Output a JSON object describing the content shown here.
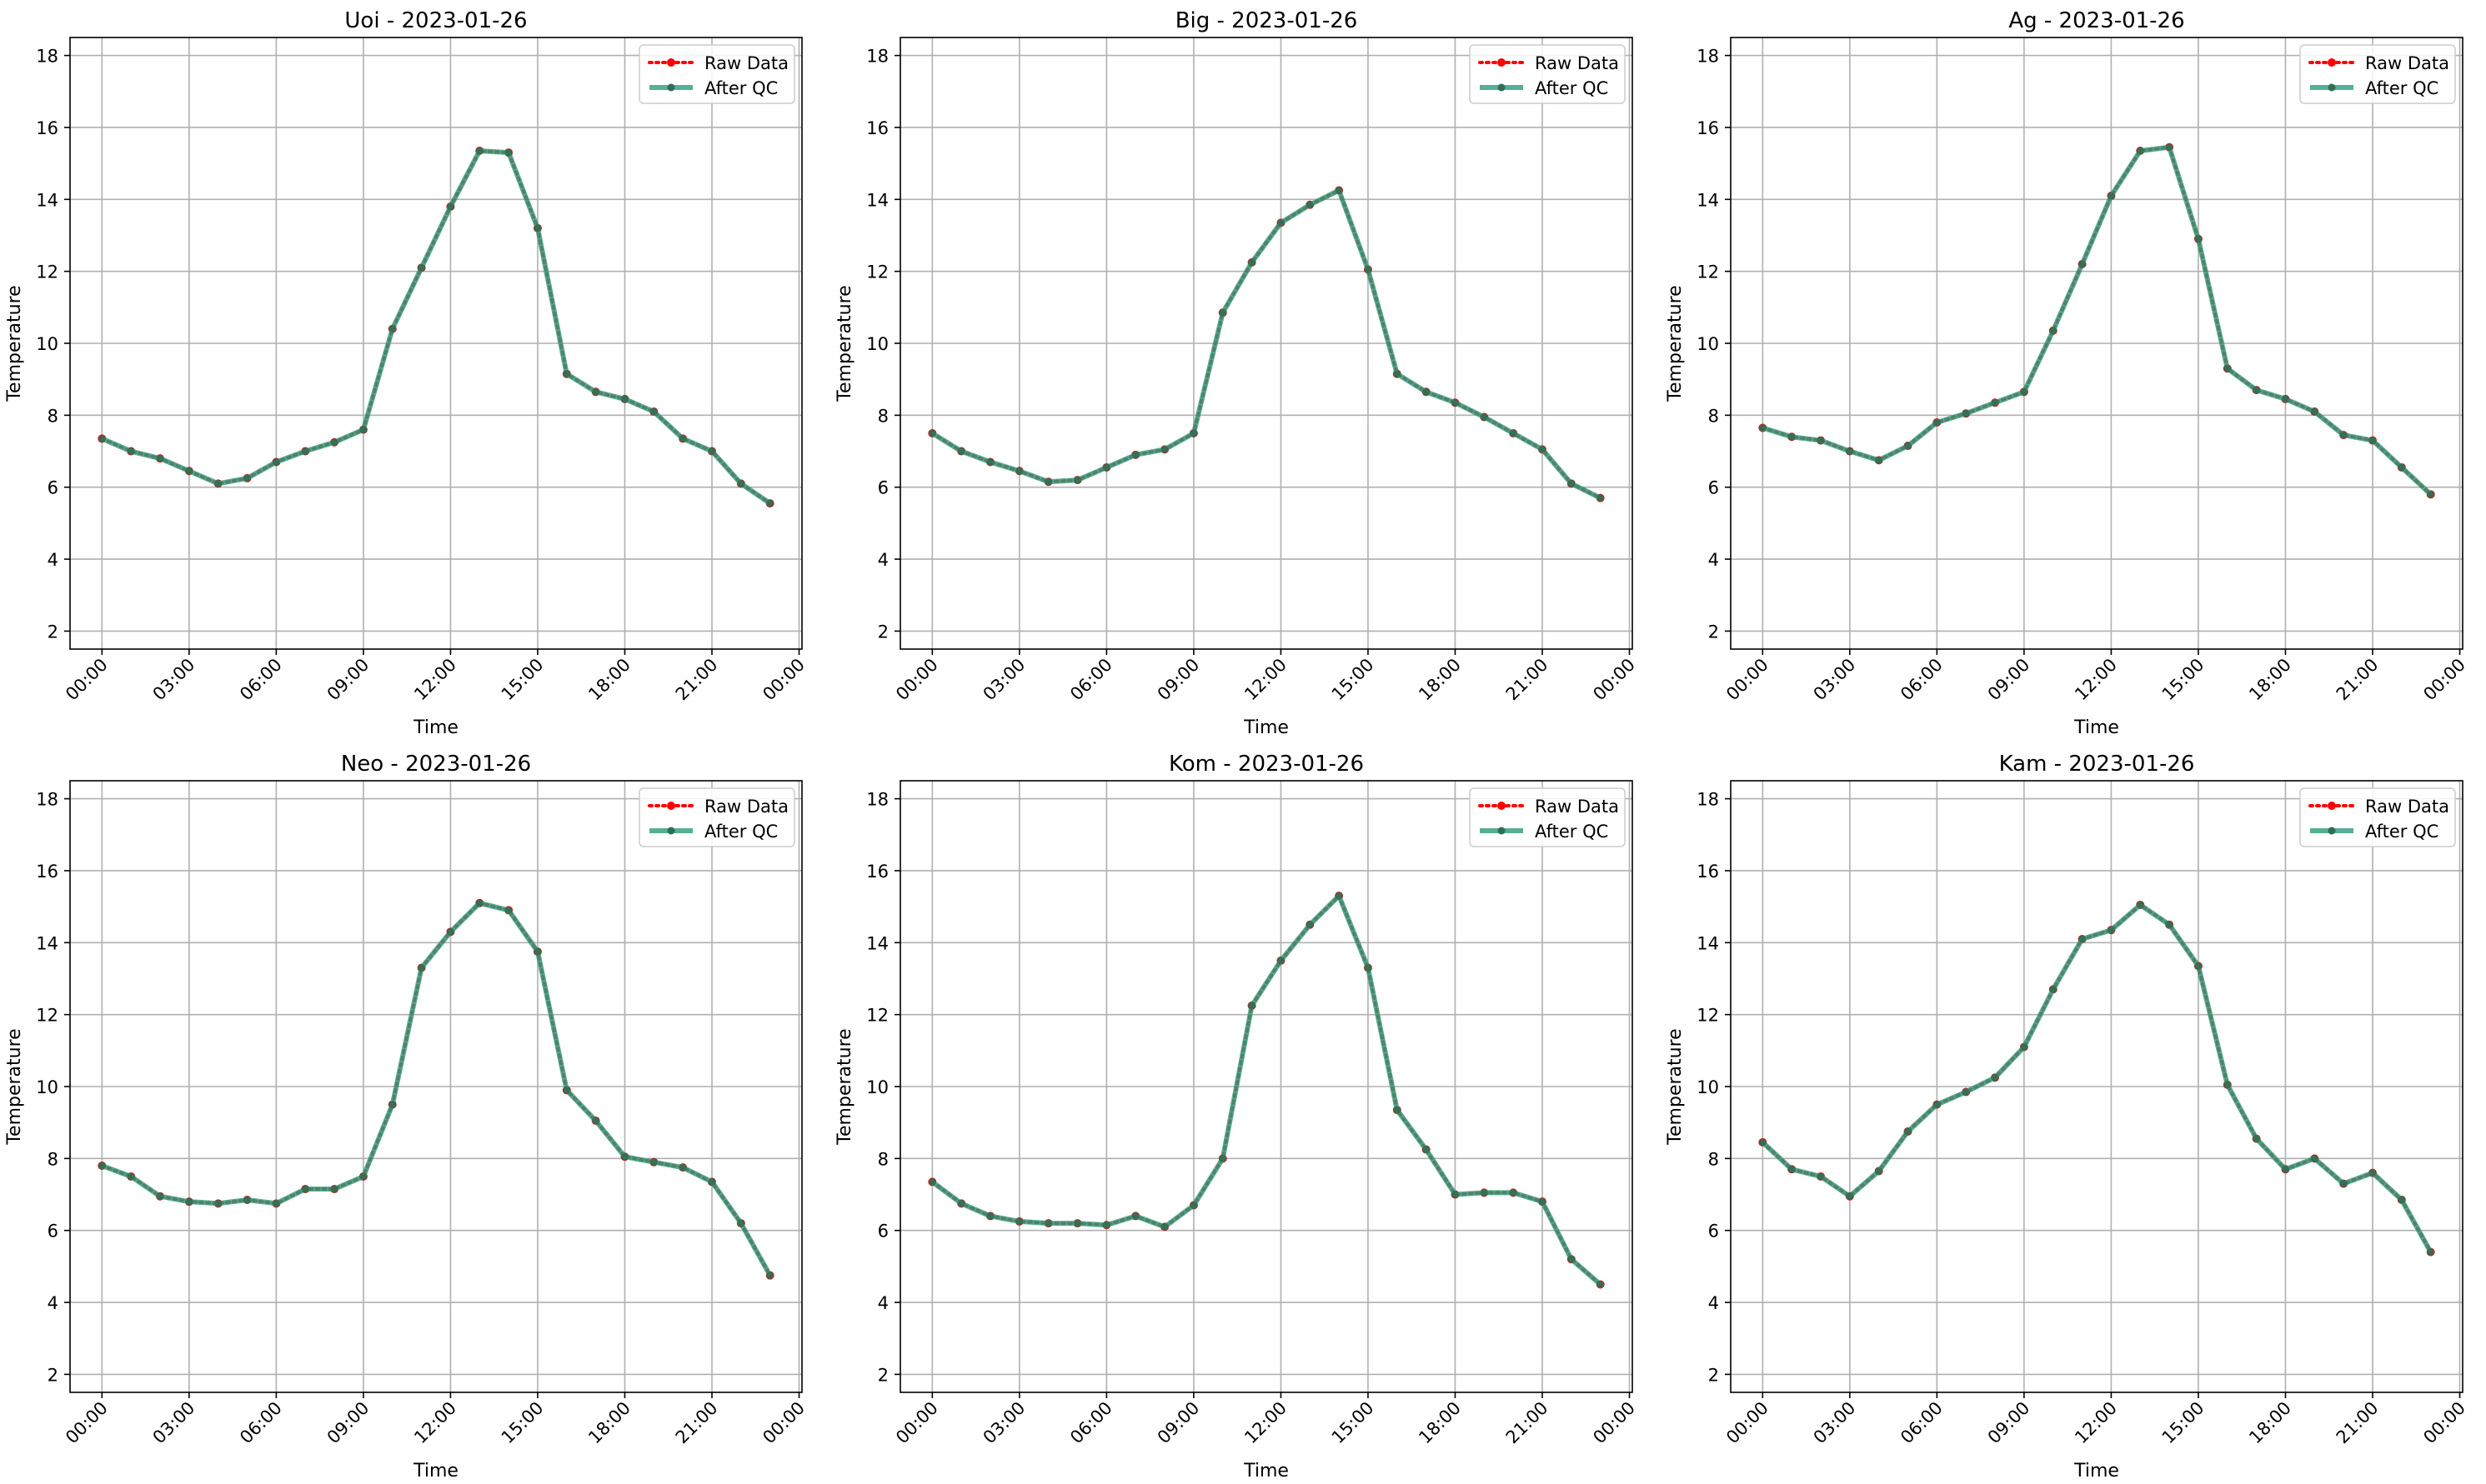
{
  "colors": {
    "raw": "#ff0000",
    "qc": "#2e9e7f",
    "grid": "#b0b0b0",
    "axis": "#000000"
  },
  "chart_data": [
    {
      "type": "line",
      "title": "Uoi - 2023-01-26",
      "xlabel": "Time",
      "ylabel": "Temperature",
      "grid": true,
      "legend_position": "top-right",
      "xlim": [
        -1.1,
        24.1
      ],
      "ylim": [
        1.5,
        18.5
      ],
      "yticks": [
        2,
        4,
        6,
        8,
        10,
        12,
        14,
        16,
        18
      ],
      "xticks": [
        0,
        3,
        6,
        9,
        12,
        15,
        18,
        21,
        24
      ],
      "xtick_labels": [
        "00:00",
        "03:00",
        "06:00",
        "09:00",
        "12:00",
        "15:00",
        "18:00",
        "21:00",
        "00:00"
      ],
      "x": [
        0,
        1,
        2,
        3,
        4,
        5,
        6,
        7,
        8,
        9,
        10,
        11,
        12,
        13,
        14,
        15,
        16,
        17,
        18,
        19,
        20,
        21,
        22,
        23
      ],
      "series": [
        {
          "name": "Raw Data",
          "values": [
            7.35,
            7.0,
            6.8,
            6.45,
            6.1,
            6.25,
            6.7,
            7.0,
            7.25,
            7.6,
            10.4,
            12.1,
            13.8,
            15.35,
            15.3,
            13.2,
            9.15,
            8.65,
            8.45,
            8.1,
            7.35,
            7.0,
            6.1,
            5.55
          ]
        },
        {
          "name": "After QC",
          "values": [
            7.35,
            7.0,
            6.8,
            6.45,
            6.1,
            6.25,
            6.7,
            7.0,
            7.25,
            7.6,
            10.4,
            12.1,
            13.8,
            15.35,
            15.3,
            13.2,
            9.15,
            8.65,
            8.45,
            8.1,
            7.35,
            7.0,
            6.1,
            5.55
          ]
        }
      ]
    },
    {
      "type": "line",
      "title": "Big - 2023-01-26",
      "xlabel": "Time",
      "ylabel": "Temperature",
      "grid": true,
      "legend_position": "top-right",
      "xlim": [
        -1.1,
        24.1
      ],
      "ylim": [
        1.5,
        18.5
      ],
      "yticks": [
        2,
        4,
        6,
        8,
        10,
        12,
        14,
        16,
        18
      ],
      "xticks": [
        0,
        3,
        6,
        9,
        12,
        15,
        18,
        21,
        24
      ],
      "xtick_labels": [
        "00:00",
        "03:00",
        "06:00",
        "09:00",
        "12:00",
        "15:00",
        "18:00",
        "21:00",
        "00:00"
      ],
      "x": [
        0,
        1,
        2,
        3,
        4,
        5,
        6,
        7,
        8,
        9,
        10,
        11,
        12,
        13,
        14,
        15,
        16,
        17,
        18,
        19,
        20,
        21,
        22,
        23
      ],
      "series": [
        {
          "name": "Raw Data",
          "values": [
            7.5,
            7.0,
            6.7,
            6.45,
            6.15,
            6.2,
            6.55,
            6.9,
            7.05,
            7.5,
            10.85,
            12.25,
            13.35,
            13.85,
            14.25,
            12.05,
            9.15,
            8.65,
            8.35,
            7.95,
            7.5,
            7.05,
            6.1,
            5.7
          ]
        },
        {
          "name": "After QC",
          "values": [
            7.5,
            7.0,
            6.7,
            6.45,
            6.15,
            6.2,
            6.55,
            6.9,
            7.05,
            7.5,
            10.85,
            12.25,
            13.35,
            13.85,
            14.25,
            12.05,
            9.15,
            8.65,
            8.35,
            7.95,
            7.5,
            7.05,
            6.1,
            5.7
          ]
        }
      ]
    },
    {
      "type": "line",
      "title": "Ag - 2023-01-26",
      "xlabel": "Time",
      "ylabel": "Temperature",
      "grid": true,
      "legend_position": "top-right",
      "xlim": [
        -1.1,
        24.1
      ],
      "ylim": [
        1.5,
        18.5
      ],
      "yticks": [
        2,
        4,
        6,
        8,
        10,
        12,
        14,
        16,
        18
      ],
      "xticks": [
        0,
        3,
        6,
        9,
        12,
        15,
        18,
        21,
        24
      ],
      "xtick_labels": [
        "00:00",
        "03:00",
        "06:00",
        "09:00",
        "12:00",
        "15:00",
        "18:00",
        "21:00",
        "00:00"
      ],
      "x": [
        0,
        1,
        2,
        3,
        4,
        5,
        6,
        7,
        8,
        9,
        10,
        11,
        12,
        13,
        14,
        15,
        16,
        17,
        18,
        19,
        20,
        21,
        22,
        23
      ],
      "series": [
        {
          "name": "Raw Data",
          "values": [
            7.65,
            7.4,
            7.3,
            7.0,
            6.75,
            7.15,
            7.8,
            8.05,
            8.35,
            8.65,
            10.35,
            12.2,
            14.1,
            15.35,
            15.45,
            12.9,
            9.3,
            8.7,
            8.45,
            8.1,
            7.45,
            7.3,
            6.55,
            5.8
          ]
        },
        {
          "name": "After QC",
          "values": [
            7.65,
            7.4,
            7.3,
            7.0,
            6.75,
            7.15,
            7.8,
            8.05,
            8.35,
            8.65,
            10.35,
            12.2,
            14.1,
            15.35,
            15.45,
            12.9,
            9.3,
            8.7,
            8.45,
            8.1,
            7.45,
            7.3,
            6.55,
            5.8
          ]
        }
      ]
    },
    {
      "type": "line",
      "title": "Neo - 2023-01-26",
      "xlabel": "Time",
      "ylabel": "Temperature",
      "grid": true,
      "legend_position": "top-right",
      "xlim": [
        -1.1,
        24.1
      ],
      "ylim": [
        1.5,
        18.5
      ],
      "yticks": [
        2,
        4,
        6,
        8,
        10,
        12,
        14,
        16,
        18
      ],
      "xticks": [
        0,
        3,
        6,
        9,
        12,
        15,
        18,
        21,
        24
      ],
      "xtick_labels": [
        "00:00",
        "03:00",
        "06:00",
        "09:00",
        "12:00",
        "15:00",
        "18:00",
        "21:00",
        "00:00"
      ],
      "x": [
        0,
        1,
        2,
        3,
        4,
        5,
        6,
        7,
        8,
        9,
        10,
        11,
        12,
        13,
        14,
        15,
        16,
        17,
        18,
        19,
        20,
        21,
        22,
        23
      ],
      "series": [
        {
          "name": "Raw Data",
          "values": [
            7.8,
            7.5,
            6.95,
            6.8,
            6.75,
            6.85,
            6.75,
            7.15,
            7.15,
            7.5,
            9.5,
            13.3,
            14.3,
            15.1,
            14.9,
            13.75,
            9.9,
            9.05,
            8.05,
            7.9,
            7.75,
            7.35,
            6.2,
            4.75
          ]
        },
        {
          "name": "After QC",
          "values": [
            7.8,
            7.5,
            6.95,
            6.8,
            6.75,
            6.85,
            6.75,
            7.15,
            7.15,
            7.5,
            9.5,
            13.3,
            14.3,
            15.1,
            14.9,
            13.75,
            9.9,
            9.05,
            8.05,
            7.9,
            7.75,
            7.35,
            6.2,
            4.75
          ]
        }
      ]
    },
    {
      "type": "line",
      "title": "Kom - 2023-01-26",
      "xlabel": "Time",
      "ylabel": "Temperature",
      "grid": true,
      "legend_position": "top-right",
      "xlim": [
        -1.1,
        24.1
      ],
      "ylim": [
        1.5,
        18.5
      ],
      "yticks": [
        2,
        4,
        6,
        8,
        10,
        12,
        14,
        16,
        18
      ],
      "xticks": [
        0,
        3,
        6,
        9,
        12,
        15,
        18,
        21,
        24
      ],
      "xtick_labels": [
        "00:00",
        "03:00",
        "06:00",
        "09:00",
        "12:00",
        "15:00",
        "18:00",
        "21:00",
        "00:00"
      ],
      "x": [
        0,
        1,
        2,
        3,
        4,
        5,
        6,
        7,
        8,
        9,
        10,
        11,
        12,
        13,
        14,
        15,
        16,
        17,
        18,
        19,
        20,
        21,
        22,
        23
      ],
      "series": [
        {
          "name": "Raw Data",
          "values": [
            7.35,
            6.75,
            6.4,
            6.25,
            6.2,
            6.2,
            6.15,
            6.4,
            6.1,
            6.7,
            8.0,
            12.25,
            13.5,
            14.5,
            15.3,
            13.3,
            9.35,
            8.25,
            7.0,
            7.05,
            7.05,
            6.8,
            5.2,
            4.5
          ]
        },
        {
          "name": "After QC",
          "values": [
            7.35,
            6.75,
            6.4,
            6.25,
            6.2,
            6.2,
            6.15,
            6.4,
            6.1,
            6.7,
            8.0,
            12.25,
            13.5,
            14.5,
            15.3,
            13.3,
            9.35,
            8.25,
            7.0,
            7.05,
            7.05,
            6.8,
            5.2,
            4.5
          ]
        }
      ]
    },
    {
      "type": "line",
      "title": "Kam - 2023-01-26",
      "xlabel": "Time",
      "ylabel": "Temperature",
      "grid": true,
      "legend_position": "top-right",
      "xlim": [
        -1.1,
        24.1
      ],
      "ylim": [
        1.5,
        18.5
      ],
      "yticks": [
        2,
        4,
        6,
        8,
        10,
        12,
        14,
        16,
        18
      ],
      "xticks": [
        0,
        3,
        6,
        9,
        12,
        15,
        18,
        21,
        24
      ],
      "xtick_labels": [
        "00:00",
        "03:00",
        "06:00",
        "09:00",
        "12:00",
        "15:00",
        "18:00",
        "21:00",
        "00:00"
      ],
      "x": [
        0,
        1,
        2,
        3,
        4,
        5,
        6,
        7,
        8,
        9,
        10,
        11,
        12,
        13,
        14,
        15,
        16,
        17,
        18,
        19,
        20,
        21,
        22,
        23
      ],
      "series": [
        {
          "name": "Raw Data",
          "values": [
            8.45,
            7.7,
            7.5,
            6.95,
            7.65,
            8.75,
            9.5,
            9.85,
            10.25,
            11.1,
            12.7,
            14.1,
            14.35,
            15.05,
            14.5,
            13.35,
            10.05,
            8.55,
            7.7,
            8.0,
            7.3,
            7.6,
            6.85,
            5.4
          ]
        },
        {
          "name": "After QC",
          "values": [
            8.45,
            7.7,
            7.5,
            6.95,
            7.65,
            8.75,
            9.5,
            9.85,
            10.25,
            11.1,
            12.7,
            14.1,
            14.35,
            15.05,
            14.5,
            13.35,
            10.05,
            8.55,
            7.7,
            8.0,
            7.3,
            7.6,
            6.85,
            5.4
          ]
        }
      ]
    }
  ]
}
